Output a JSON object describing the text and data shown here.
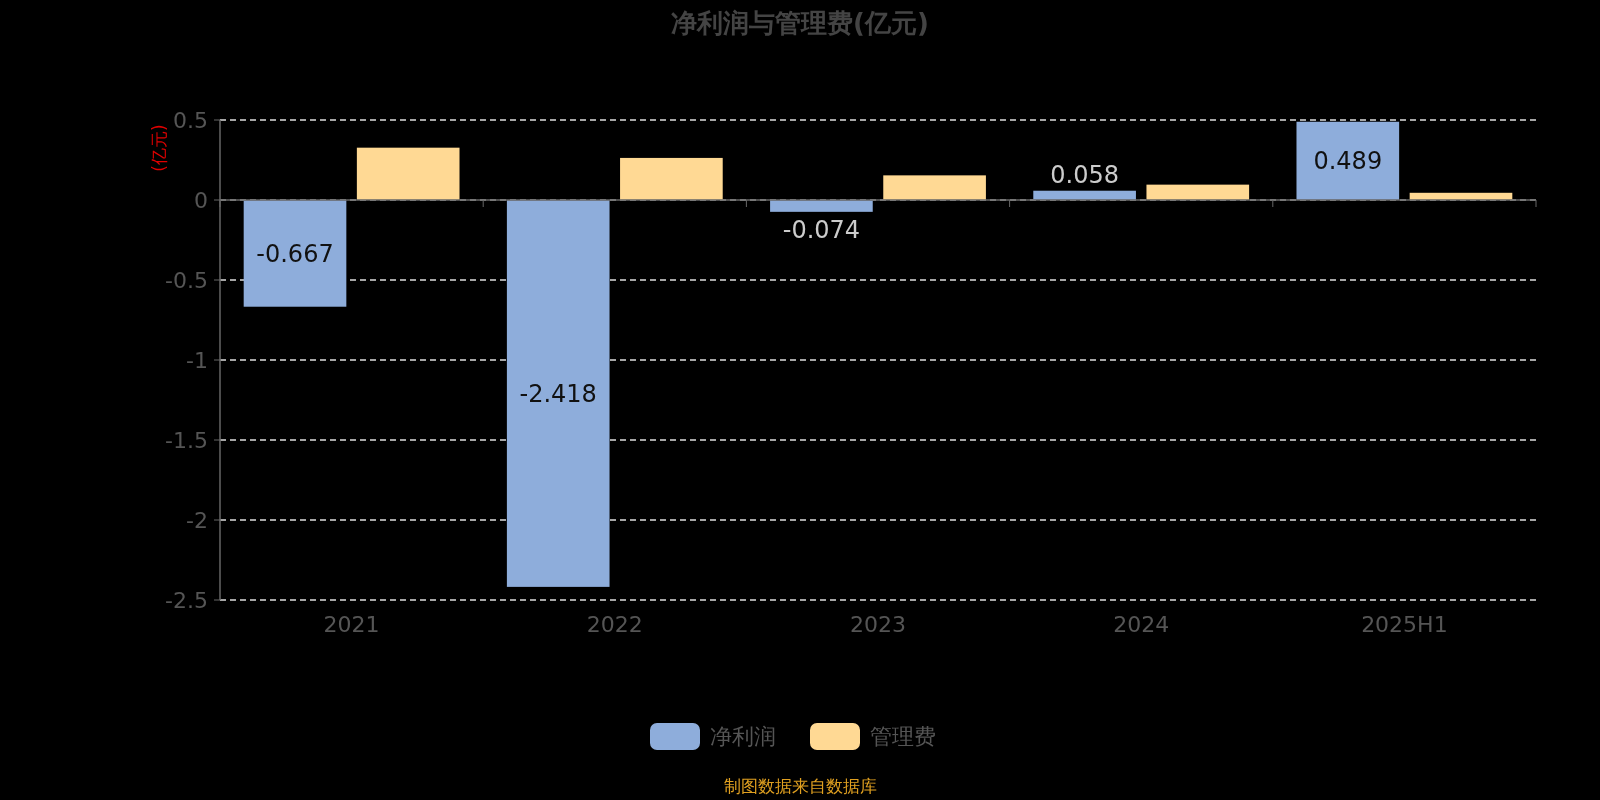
{
  "chart_data": {
    "type": "bar",
    "title": "净利润与管理费(亿元)",
    "ylabel": "(亿元)",
    "categories": [
      "2021",
      "2022",
      "2023",
      "2024",
      "2025H1"
    ],
    "series": [
      {
        "name": "净利润",
        "color": "#8eaddb",
        "values": [
          -0.667,
          -2.418,
          -0.074,
          0.058,
          0.489
        ],
        "value_labels": [
          "-0.667",
          "-2.418",
          "-0.074",
          "0.058",
          "0.489"
        ]
      },
      {
        "name": "管理费",
        "color": "#ffd994",
        "values": [
          0.327,
          0.263,
          0.154,
          0.096,
          0.045
        ]
      }
    ],
    "ylim": [
      -2.5,
      0.5
    ],
    "yticks": [
      0.5,
      0,
      -0.5,
      -1,
      -1.5,
      -2,
      -2.5
    ],
    "grid": "y",
    "legend": "bottom",
    "annotations": [
      "制图数据来自数据库"
    ]
  }
}
